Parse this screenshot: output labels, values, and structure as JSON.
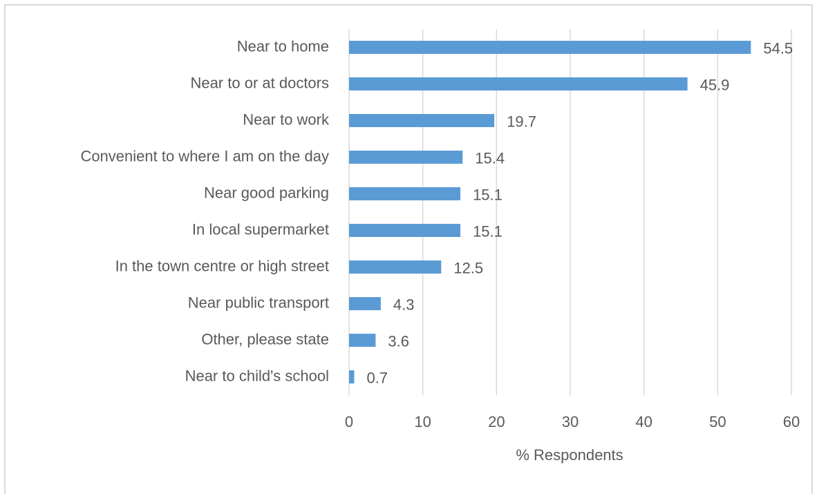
{
  "chart_data": {
    "type": "bar",
    "orientation": "horizontal",
    "categories": [
      "Near to home",
      "Near to or at doctors",
      "Near to work",
      "Convenient to where I am on the day",
      "Near good parking",
      "In local supermarket",
      "In the town centre or high street",
      "Near public transport",
      "Other, please state",
      "Near to child's school"
    ],
    "values": [
      54.5,
      45.9,
      19.7,
      15.4,
      15.1,
      15.1,
      12.5,
      4.3,
      3.6,
      0.7
    ],
    "color": "#5b9bd5",
    "x_label": "% Respondents",
    "xlim": [
      0,
      60
    ],
    "xticks": [
      0,
      10,
      20,
      30,
      40,
      50,
      60
    ],
    "grid": true
  }
}
